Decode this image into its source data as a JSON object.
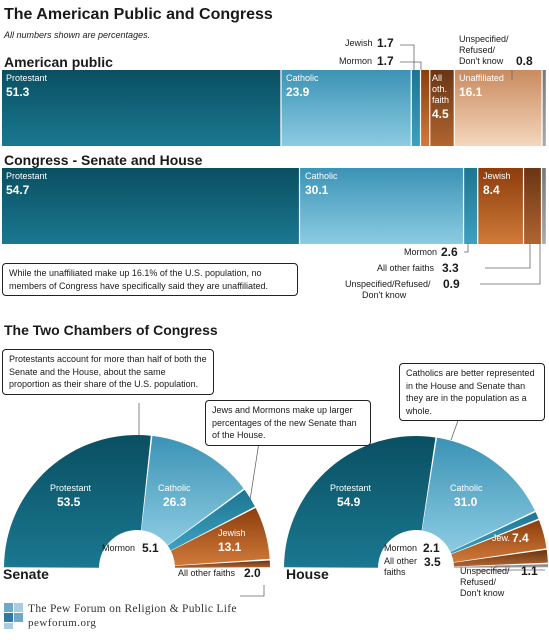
{
  "page": {
    "title": "The American Public and Congress",
    "subtitle": "All numbers shown are percentages.",
    "section2_title": "The Two Chambers of Congress"
  },
  "colors": {
    "protestant": "#0f5f73",
    "catholic": "#4ea9c9",
    "mormon": "#2a8aa5",
    "jewish": "#b45a1c",
    "other": "#8a4a25",
    "unaffiliated": "#e6b48f",
    "unspecified": "#8c8c8c"
  },
  "chart_data": [
    {
      "type": "bar",
      "title": "American public",
      "categories": [
        "Protestant",
        "Catholic",
        "Mormon",
        "Jewish",
        "All oth. faith",
        "Unaffiliated",
        "Unspecified/Refused/ Don't know"
      ],
      "values": [
        51.3,
        23.9,
        1.7,
        1.7,
        4.5,
        16.1,
        0.8
      ]
    },
    {
      "type": "bar",
      "title": "Congress - Senate and House",
      "categories": [
        "Protestant",
        "Catholic",
        "Mormon",
        "Jewish",
        "All other faiths",
        "Unspecified/Refused/ Don't know"
      ],
      "values": [
        54.7,
        30.1,
        2.6,
        8.4,
        3.3,
        0.9
      ]
    },
    {
      "type": "pie",
      "title": "Senate",
      "categories": [
        "Protestant",
        "Catholic",
        "Mormon",
        "Jewish",
        "All other faiths"
      ],
      "values": [
        53.5,
        26.3,
        5.1,
        13.1,
        2.0
      ]
    },
    {
      "type": "pie",
      "title": "House",
      "categories": [
        "Protestant",
        "Catholic",
        "Mormon",
        "Jew.",
        "All other faiths",
        "Unspecified/ Refused/ Don't know"
      ],
      "values": [
        54.9,
        31.0,
        2.1,
        7.4,
        3.5,
        1.1
      ]
    }
  ],
  "labels": {
    "public": {
      "protestant": "Protestant",
      "protestant_v": "51.3",
      "catholic": "Catholic",
      "catholic_v": "23.9",
      "jewish": "Jewish",
      "jewish_v": "1.7",
      "mormon": "Mormon",
      "mormon_v": "1.7",
      "other_1": "All",
      "other_2": "oth.",
      "other_3": "faith",
      "other_v": "4.5",
      "unaffiliated": "Unaffiliated",
      "unaffiliated_v": "16.1",
      "unspec_1": "Unspecified/",
      "unspec_2": "Refused/",
      "unspec_3": "Don't know",
      "unspec_v": "0.8"
    },
    "congress": {
      "protestant": "Protestant",
      "protestant_v": "54.7",
      "catholic": "Catholic",
      "catholic_v": "30.1",
      "jewish": "Jewish",
      "jewish_v": "8.4",
      "mormon": "Mormon",
      "mormon_v": "2.6",
      "other": "All other faiths",
      "other_v": "3.3",
      "unspec_1": "Unspecified/Refused/",
      "unspec_2": "Don't know",
      "unspec_v": "0.9"
    },
    "senate": {
      "title": "Senate",
      "protestant": "Protestant",
      "protestant_v": "53.5",
      "catholic": "Catholic",
      "catholic_v": "26.3",
      "mormon": "Mormon",
      "mormon_v": "5.1",
      "jewish": "Jewish",
      "jewish_v": "13.1",
      "other": "All other faiths",
      "other_v": "2.0"
    },
    "house": {
      "title": "House",
      "protestant": "Protestant",
      "protestant_v": "54.9",
      "catholic": "Catholic",
      "catholic_v": "31.0",
      "mormon": "Mormon",
      "mormon_v": "2.1",
      "jewish": "Jew.",
      "jewish_v": "7.4",
      "other_1": "All other",
      "other_2": "faiths",
      "other_v": "3.5",
      "unspec_1": "Unspecified/",
      "unspec_2": "Refused/",
      "unspec_3": "Don't know",
      "unspec_v": "1.1"
    }
  },
  "callouts": {
    "unaffiliated": "While the unaffiliated make up 16.1% of the U.S. population, no members of Congress have specifically said they are unaffiliated.",
    "protestants": "Protestants account for more than half of both the Senate and the House, about the same proportion as their share of the U.S. population.",
    "jews": "Jews and Mormons make up larger percentages of the new Senate than of the House.",
    "catholics": "Catholics are better represented in the House and Senate than they are in the population as a whole."
  },
  "footer": {
    "org": "The Pew Forum on Religion & Public Life",
    "site": "pewforum.org"
  }
}
